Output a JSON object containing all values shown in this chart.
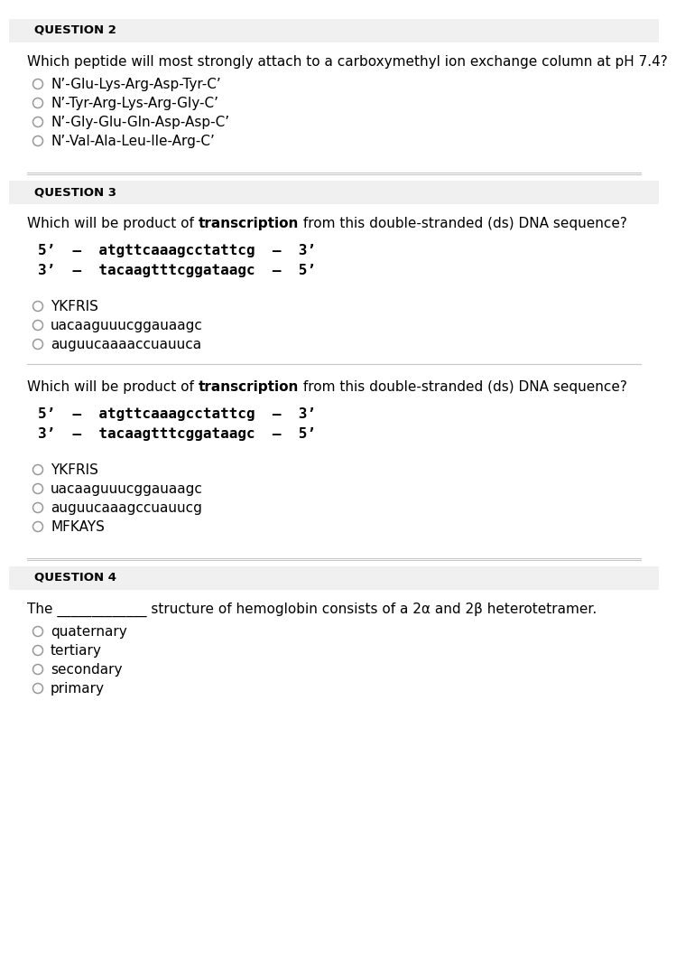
{
  "bg_color": "#ffffff",
  "text_color": "#000000",
  "q2": {
    "header": "QUESTION 2",
    "question": "Which peptide will most strongly attach to a carboxymethyl ion exchange column at pH 7.4?",
    "options": [
      "N’-Glu-Lys-Arg-Asp-Tyr-C’",
      "N’-Tyr-Arg-Lys-Arg-Gly-C’",
      "N’-Gly-Glu-Gln-Asp-Asp-C’",
      "N’-Val-Ala-Leu-Ile-Arg-C’"
    ]
  },
  "q3a": {
    "header": "QUESTION 3",
    "seq1": "5’  –  atgttcaaagcctattcg  –  3’",
    "seq2": "3’  –  tacaagtttcggataagc  –  5’",
    "options": [
      "YKFRIS",
      "uacaaguuucggauaagc",
      "auguucaaaaccuauuca"
    ]
  },
  "q3b": {
    "seq1": "5’  –  atgttcaaagcctattcg  –  3’",
    "seq2": "3’  –  tacaagtttcggataagc  –  5’",
    "options": [
      "YKFRIS",
      "uacaaguuucggauaagc",
      "auguucaaagccuauucg",
      "MFKAYS"
    ]
  },
  "q4": {
    "header": "QUESTION 4",
    "question_pre": "The _____________ structure of hemoglobin consists of a 2α and 2β heterotetramer.",
    "options": [
      "quaternary",
      "tertiary",
      "secondary",
      "primary"
    ]
  },
  "divider_color": "#c8c8c8",
  "header_bg": "#f0f0f0",
  "circle_color": "#999999",
  "q_normal_1": "Which will be product of ",
  "q_bold_1": "transcription",
  "q_normal_2": " from this double-stranded (ds) DNA sequence?"
}
